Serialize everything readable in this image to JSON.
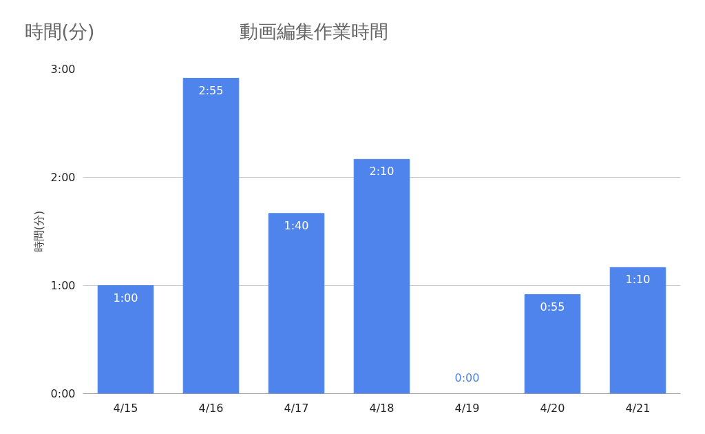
{
  "chart_data": {
    "type": "bar",
    "title": "動画編集作業時間",
    "ylabel": "時間(分)",
    "annotations": [
      "時間(分)"
    ],
    "categories": [
      "4/15",
      "4/16",
      "4/17",
      "4/18",
      "4/19",
      "4/20",
      "4/21"
    ],
    "values": [
      1,
      2.9167,
      1.6667,
      2.1667,
      0,
      0.9167,
      1.1667
    ],
    "value_labels": [
      "1:00",
      "2:55",
      "1:40",
      "2:10",
      "0:00",
      "0:55",
      "1:10"
    ],
    "color": "#4f84ec",
    "ylim": [
      0,
      3
    ],
    "yticks": [
      {
        "value": 0,
        "label": "0:00"
      },
      {
        "value": 1,
        "label": "1:00"
      },
      {
        "value": 2,
        "label": "2:00"
      },
      {
        "value": 3,
        "label": "3:00"
      }
    ],
    "grid": "y"
  }
}
